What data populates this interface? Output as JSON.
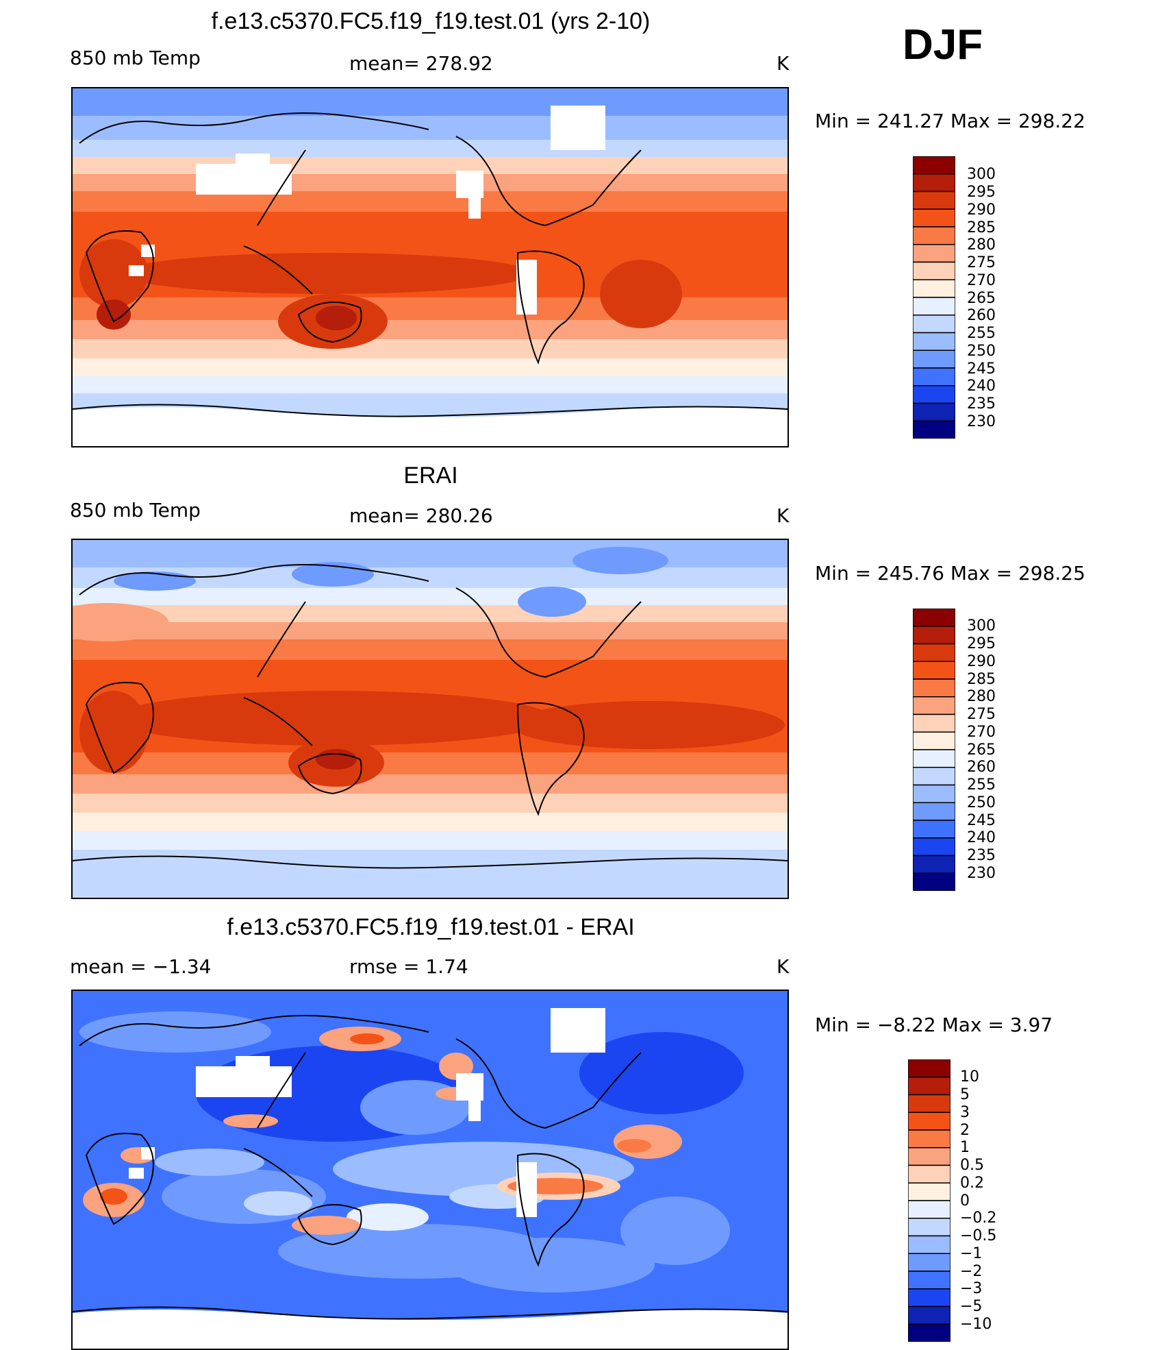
{
  "season": "DJF",
  "chart_data": [
    {
      "type": "heatmap",
      "title": "f.e13.c5370.FC5.f19_f19.test.01 (yrs 2-10)",
      "left_label": "850 mb Temp",
      "center_label": "mean= 278.92",
      "units": "K",
      "minmax": "Min  =  241.27  Max  =  298.22",
      "legend_levels": [
        "300",
        "295",
        "290",
        "285",
        "280",
        "275",
        "270",
        "265",
        "260",
        "255",
        "250",
        "245",
        "240",
        "235",
        "230"
      ]
    },
    {
      "type": "heatmap",
      "title": "ERAI",
      "left_label": "850 mb Temp",
      "center_label": "mean= 280.26",
      "units": "K",
      "minmax": "Min  =  245.76  Max  =  298.25",
      "legend_levels": [
        "300",
        "295",
        "290",
        "285",
        "280",
        "275",
        "270",
        "265",
        "260",
        "255",
        "250",
        "245",
        "240",
        "235",
        "230"
      ]
    },
    {
      "type": "heatmap",
      "title": "f.e13.c5370.FC5.f19_f19.test.01 - ERAI",
      "left_label": "mean =    −1.34",
      "center_label": "rmse =     1.74",
      "units": "K",
      "minmax": "Min  =    −8.22  Max  =      3.97",
      "legend_levels": [
        "10",
        "5",
        "3",
        "2",
        "1",
        "0.5",
        "0.2",
        "0",
        "−0.2",
        "−0.5",
        "−1",
        "−2",
        "−3",
        "−5",
        "−10"
      ]
    }
  ],
  "colors": {
    "temp_scale": [
      "#8b0000",
      "#b41e0b",
      "#d93a0d",
      "#f45318",
      "#f97a45",
      "#fba27e",
      "#fdd2b9",
      "#fff0e1",
      "#e6f0ff",
      "#c3d8ff",
      "#9bbcff",
      "#6f9bff",
      "#3f73ff",
      "#1c45f2",
      "#0e22b4",
      "#000080"
    ],
    "diff_scale": [
      "#8b0000",
      "#b41e0b",
      "#d93a0d",
      "#f45318",
      "#f97a45",
      "#fba27e",
      "#fdd2b9",
      "#fff0e1",
      "#e6f0ff",
      "#c3d8ff",
      "#9bbcff",
      "#6f9bff",
      "#3f73ff",
      "#1c45f2",
      "#0e22b4",
      "#000080"
    ]
  }
}
